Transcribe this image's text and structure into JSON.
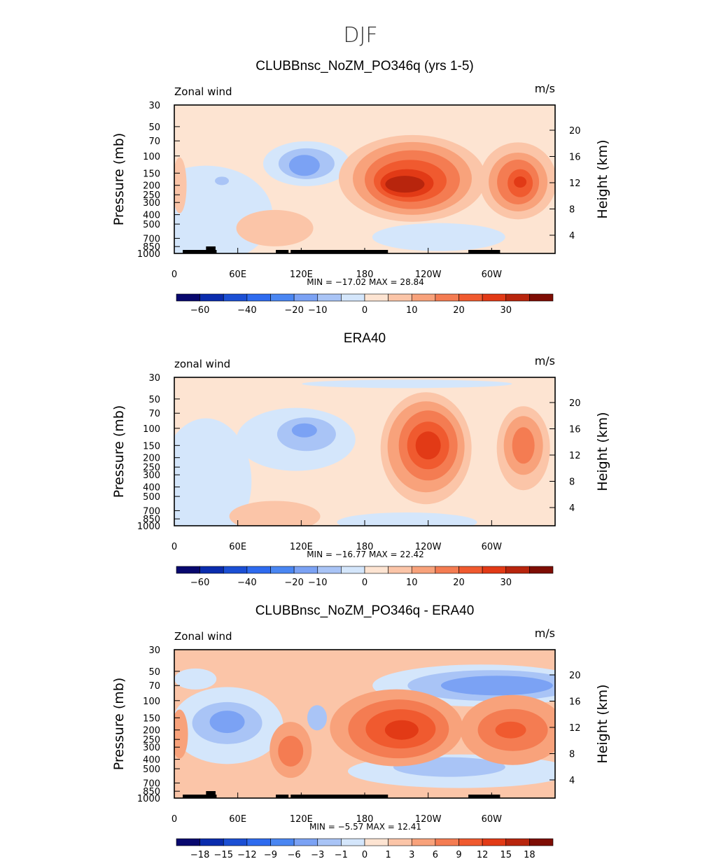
{
  "figure": {
    "season": "DJF"
  },
  "colors": {
    "blue": [
      "#08086e",
      "#0a2cad",
      "#1b4fd4",
      "#2e6bef",
      "#4a86f2",
      "#7ba2f4",
      "#a9c4f6",
      "#d4e6fb"
    ],
    "red": [
      "#fde4d2",
      "#fbc5a8",
      "#f8a27b",
      "#f47c52",
      "#f05a2f",
      "#e23a16",
      "#b8250d",
      "#7e0d04"
    ]
  },
  "chart_data": [
    {
      "type": "contour",
      "title": "CLUBBnsc_NoZM_PO346q (yrs 1-5)",
      "left_label": "Zonal wind",
      "right_label": "m/s",
      "ylabel": "Pressure  (mb)",
      "ylabel_right": "Height  (km)",
      "yticks": [
        "30",
        "50",
        "70",
        "100",
        "150",
        "200",
        "250",
        "300",
        "400",
        "500",
        "700",
        "850",
        "1000"
      ],
      "yticks_right": [
        "20",
        "16",
        "12",
        "8",
        "4"
      ],
      "xticks": [
        "0",
        "60E",
        "120E",
        "180",
        "120W",
        "60W"
      ],
      "stats": "MIN = −17.02   MAX =   28.84",
      "min": -17.02,
      "max": 28.84,
      "colorbar_labels": [
        "−60",
        "−40",
        "−20",
        "−10",
        "0",
        "10",
        "20",
        "30"
      ],
      "contour_levels": [
        -70,
        -60,
        -50,
        -40,
        -30,
        -20,
        -15,
        -10,
        -5,
        0,
        5,
        10,
        15,
        20,
        25,
        30,
        35
      ],
      "features": [
        {
          "lon": 120,
          "p": 120,
          "value": -15
        },
        {
          "lon": 220,
          "p": 200,
          "value": 28.84
        },
        {
          "lon": 325,
          "p": 180,
          "value": 22
        },
        {
          "lon": 85,
          "p": 550,
          "value": 6
        }
      ],
      "land_mask": true
    },
    {
      "type": "contour",
      "title": "ERA40",
      "left_label": "zonal wind",
      "right_label": "m/s",
      "ylabel": "Pressure  (mb)",
      "ylabel_right": "Height  (km)",
      "yticks": [
        "30",
        "50",
        "70",
        "100",
        "150",
        "200",
        "250",
        "300",
        "400",
        "500",
        "700",
        "850",
        "1000"
      ],
      "yticks_right": [
        "20",
        "16",
        "12",
        "8",
        "4"
      ],
      "xticks": [
        "0",
        "60E",
        "120E",
        "180",
        "120W",
        "60W"
      ],
      "stats": "MIN = −16.77   MAX =   22.42",
      "min": -16.77,
      "max": 22.42,
      "colorbar_labels": [
        "−60",
        "−40",
        "−20",
        "−10",
        "0",
        "10",
        "20",
        "30"
      ],
      "contour_levels": [
        -70,
        -60,
        -50,
        -40,
        -30,
        -20,
        -15,
        -10,
        -5,
        0,
        5,
        10,
        15,
        20,
        25,
        30,
        35
      ],
      "features": [
        {
          "lon": 125,
          "p": 110,
          "value": -16.77
        },
        {
          "lon": 240,
          "p": 150,
          "value": 22.42
        },
        {
          "lon": 330,
          "p": 150,
          "value": 17
        },
        {
          "lon": 95,
          "p": 750,
          "value": 5
        }
      ],
      "land_mask": false
    },
    {
      "type": "contour",
      "title": "CLUBBnsc_NoZM_PO346q - ERA40",
      "left_label": "Zonal wind",
      "right_label": "m/s",
      "ylabel": "Pressure  (mb)",
      "ylabel_right": "Height  (km)",
      "yticks": [
        "30",
        "50",
        "70",
        "100",
        "150",
        "200",
        "250",
        "300",
        "400",
        "500",
        "700",
        "850",
        "1000"
      ],
      "yticks_right": [
        "20",
        "16",
        "12",
        "8",
        "4"
      ],
      "xticks": [
        "0",
        "60E",
        "120E",
        "180",
        "120W",
        "60W"
      ],
      "stats": "MIN =   −5.57   MAX =   12.41",
      "min": -5.57,
      "max": 12.41,
      "colorbar_labels": [
        "−18",
        "−15",
        "−12",
        "−9",
        "−6",
        "−3",
        "−1",
        "0",
        "1",
        "3",
        "6",
        "9",
        "12",
        "15",
        "18"
      ],
      "contour_levels": [
        -21,
        -18,
        -15,
        -12,
        -9,
        -6,
        -3,
        -1,
        0,
        1,
        3,
        6,
        9,
        12,
        15,
        18,
        21
      ],
      "features": [
        {
          "lon": 215,
          "p": 200,
          "value": 12.41
        },
        {
          "lon": 320,
          "p": 200,
          "value": 10
        },
        {
          "lon": 300,
          "p": 60,
          "value": -5
        },
        {
          "lon": 40,
          "p": 180,
          "value": -5.57
        }
      ],
      "land_mask": true
    }
  ]
}
